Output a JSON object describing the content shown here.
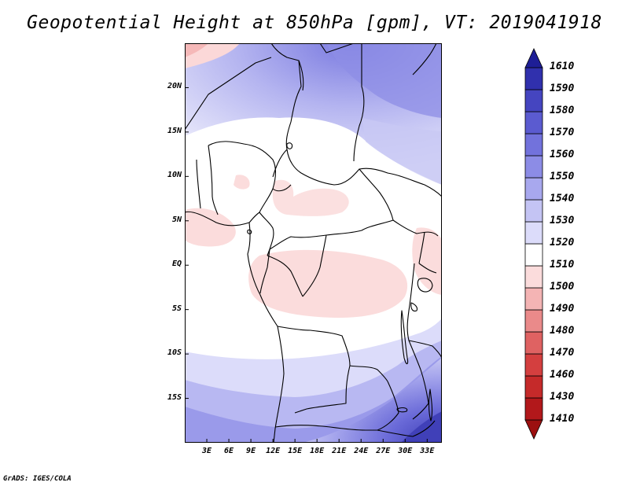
{
  "title": "Geopotential Height at 850hPa [gpm], VT: 2019041918",
  "credit": "GrADS: IGES/COLA",
  "map": {
    "lon_range": [
      0,
      35
    ],
    "lat_range": [
      -20,
      25
    ],
    "lat_labels": [
      {
        "lat": 20,
        "text": "20N"
      },
      {
        "lat": 15,
        "text": "15N"
      },
      {
        "lat": 10,
        "text": "10N"
      },
      {
        "lat": 5,
        "text": "5N"
      },
      {
        "lat": 0,
        "text": "EQ"
      },
      {
        "lat": -5,
        "text": "5S"
      },
      {
        "lat": -10,
        "text": "10S"
      },
      {
        "lat": -15,
        "text": "15S"
      }
    ],
    "lon_labels": [
      {
        "lon": 3,
        "text": "3E"
      },
      {
        "lon": 6,
        "text": "6E"
      },
      {
        "lon": 9,
        "text": "9E"
      },
      {
        "lon": 12,
        "text": "12E"
      },
      {
        "lon": 15,
        "text": "15E"
      },
      {
        "lon": 18,
        "text": "18E"
      },
      {
        "lon": 21,
        "text": "21E"
      },
      {
        "lon": 24,
        "text": "24E"
      },
      {
        "lon": 27,
        "text": "27E"
      },
      {
        "lon": 30,
        "text": "30E"
      },
      {
        "lon": 33,
        "text": "33E"
      }
    ]
  },
  "colorbar": {
    "bottom_value": "1410",
    "levels": [
      {
        "value": "1430",
        "color": "#b2181b"
      },
      {
        "value": "1460",
        "color": "#c52a2a"
      },
      {
        "value": "1470",
        "color": "#d43f3f"
      },
      {
        "value": "1480",
        "color": "#df6262"
      },
      {
        "value": "1490",
        "color": "#ea8a8a"
      },
      {
        "value": "1500",
        "color": "#f4b4b4"
      },
      {
        "value": "1510",
        "color": "#fbdcdc"
      },
      {
        "value": "1520",
        "color": "#ffffff"
      },
      {
        "value": "1530",
        "color": "#dcdcfa"
      },
      {
        "value": "1540",
        "color": "#c4c4f4"
      },
      {
        "value": "1550",
        "color": "#a8a8ee"
      },
      {
        "value": "1560",
        "color": "#8c8ce6"
      },
      {
        "value": "1570",
        "color": "#7272dc"
      },
      {
        "value": "1580",
        "color": "#5b5bd0"
      },
      {
        "value": "1590",
        "color": "#4545c0"
      },
      {
        "value": "1610",
        "color": "#3030ad"
      }
    ],
    "top_color": "#1e1e96",
    "bottom_color": "#9c1010"
  }
}
